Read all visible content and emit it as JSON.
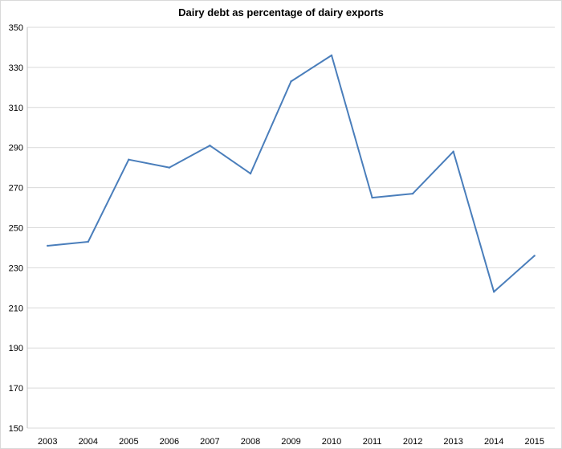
{
  "chart_data": {
    "type": "line",
    "title": "Dairy debt as percentage of dairy exports",
    "xlabel": "",
    "ylabel": "",
    "categories": [
      "2003",
      "2004",
      "2005",
      "2006",
      "2007",
      "2008",
      "2009",
      "2010",
      "2011",
      "2012",
      "2013",
      "2014",
      "2015"
    ],
    "series": [
      {
        "values": [
          241,
          243,
          284,
          280,
          291,
          277,
          323,
          336,
          265,
          267,
          288,
          218,
          236
        ]
      }
    ],
    "ylim": [
      150,
      350
    ],
    "yticks": [
      150,
      170,
      190,
      210,
      230,
      250,
      270,
      290,
      310,
      330,
      350
    ],
    "grid": true,
    "legend": "none",
    "line_color": "#4a7ebb"
  }
}
